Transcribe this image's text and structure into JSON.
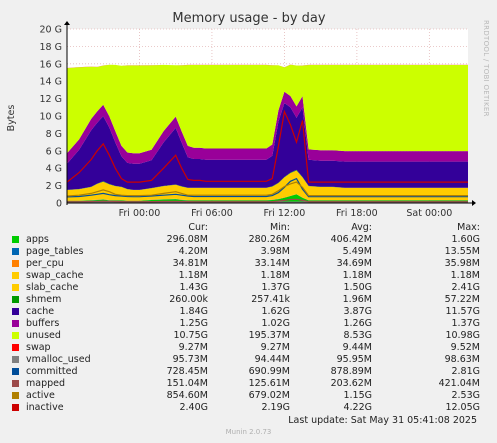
{
  "chart_data": {
    "type": "area",
    "title": "Memory usage - by day",
    "ylabel": "Bytes",
    "side_text": "RRDTOOL / TOBI OETIKER",
    "yticks": [
      "0",
      "2 G",
      "4 G",
      "6 G",
      "8 G",
      "10 G",
      "12 G",
      "14 G",
      "16 G",
      "18 G",
      "20 G"
    ],
    "ylim_gb": [
      0,
      20
    ],
    "xticks": [
      {
        "label": "Fri 00:00",
        "h": 6
      },
      {
        "label": "Fri 06:00",
        "h": 12
      },
      {
        "label": "Fri 12:00",
        "h": 18
      },
      {
        "label": "Fri 18:00",
        "h": 24
      },
      {
        "label": "Sat 00:00",
        "h": 30
      }
    ],
    "xlim_hours": [
      0,
      33.2
    ],
    "grid": true,
    "x_hours": [
      0,
      1,
      2,
      2.5,
      3,
      3.5,
      4,
      4.5,
      5,
      5.5,
      6,
      7,
      8,
      9,
      9.5,
      10,
      10.5,
      11,
      11.5,
      12,
      13,
      14,
      15,
      16,
      16.5,
      17,
      17.5,
      18,
      18.5,
      19,
      19.5,
      20,
      21,
      22,
      23,
      24,
      25,
      26,
      27,
      28,
      29,
      30,
      31,
      32,
      33.2
    ],
    "series": [
      {
        "name": "apps",
        "color": "#00cc00",
        "values": [
          0.25,
          0.25,
          0.3,
          0.35,
          0.4,
          0.3,
          0.3,
          0.3,
          0.25,
          0.25,
          0.25,
          0.35,
          0.4,
          0.45,
          0.35,
          0.3,
          0.3,
          0.3,
          0.3,
          0.3,
          0.3,
          0.3,
          0.3,
          0.3,
          0.3,
          0.35,
          0.45,
          0.6,
          0.8,
          1.0,
          0.6,
          0.3,
          0.3,
          0.3,
          0.3,
          0.3,
          0.3,
          0.3,
          0.3,
          0.3,
          0.3,
          0.3,
          0.3,
          0.3,
          0.3
        ]
      },
      {
        "name": "page_tables",
        "color": "#0066b3",
        "values": [
          0.01,
          0.01,
          0.01,
          0.01,
          0.01,
          0.01,
          0.01,
          0.01,
          0.01,
          0.01,
          0.01,
          0.01,
          0.01,
          0.01,
          0.01,
          0.01,
          0.01,
          0.01,
          0.01,
          0.01,
          0.01,
          0.01,
          0.01,
          0.01,
          0.01,
          0.01,
          0.01,
          0.01,
          0.01,
          0.01,
          0.01,
          0.01,
          0.01,
          0.01,
          0.01,
          0.01,
          0.01,
          0.01,
          0.01,
          0.01,
          0.01,
          0.01,
          0.01,
          0.01,
          0.01
        ]
      },
      {
        "name": "per_cpu",
        "color": "#ff8000",
        "values": [
          0.03,
          0.03,
          0.03,
          0.03,
          0.03,
          0.03,
          0.03,
          0.03,
          0.03,
          0.03,
          0.03,
          0.03,
          0.03,
          0.03,
          0.03,
          0.03,
          0.03,
          0.03,
          0.03,
          0.03,
          0.03,
          0.03,
          0.03,
          0.03,
          0.03,
          0.03,
          0.03,
          0.03,
          0.03,
          0.03,
          0.03,
          0.03,
          0.03,
          0.03,
          0.03,
          0.03,
          0.03,
          0.03,
          0.03,
          0.03,
          0.03,
          0.03,
          0.03,
          0.03,
          0.03
        ]
      },
      {
        "name": "swap_cache",
        "color": "#ffcc00",
        "values": [
          0.0,
          0.0,
          0.0,
          0.0,
          0.0,
          0.0,
          0.0,
          0.0,
          0.0,
          0.0,
          0.0,
          0.0,
          0.0,
          0.0,
          0.0,
          0.0,
          0.0,
          0.0,
          0.0,
          0.0,
          0.0,
          0.0,
          0.0,
          0.0,
          0.0,
          0.0,
          0.0,
          0.0,
          0.0,
          0.0,
          0.0,
          0.0,
          0.0,
          0.0,
          0.0,
          0.0,
          0.0,
          0.0,
          0.0,
          0.0,
          0.0,
          0.0,
          0.0,
          0.0,
          0.0
        ]
      },
      {
        "name": "slab_cache",
        "color": "#ffcc00",
        "values": [
          1.2,
          1.3,
          1.5,
          1.8,
          2.0,
          1.8,
          1.6,
          1.5,
          1.3,
          1.2,
          1.2,
          1.3,
          1.5,
          1.6,
          1.5,
          1.4,
          1.4,
          1.4,
          1.4,
          1.4,
          1.4,
          1.4,
          1.4,
          1.4,
          1.4,
          1.5,
          1.8,
          2.3,
          2.6,
          2.7,
          2.3,
          1.6,
          1.5,
          1.5,
          1.4,
          1.4,
          1.4,
          1.4,
          1.4,
          1.4,
          1.4,
          1.4,
          1.4,
          1.4,
          1.4
        ]
      },
      {
        "name": "shmem",
        "color": "#009900",
        "values": [
          0.02,
          0.02,
          0.03,
          0.04,
          0.05,
          0.04,
          0.03,
          0.03,
          0.02,
          0.02,
          0.02,
          0.03,
          0.03,
          0.04,
          0.03,
          0.02,
          0.02,
          0.02,
          0.02,
          0.02,
          0.02,
          0.02,
          0.02,
          0.02,
          0.02,
          0.03,
          0.04,
          0.05,
          0.06,
          0.06,
          0.05,
          0.02,
          0.02,
          0.02,
          0.02,
          0.02,
          0.02,
          0.02,
          0.02,
          0.02,
          0.02,
          0.02,
          0.02,
          0.02,
          0.02
        ]
      },
      {
        "name": "cache",
        "color": "#330099",
        "values": [
          3.0,
          4.5,
          6.5,
          7.0,
          7.5,
          6.5,
          5.0,
          3.5,
          3.0,
          3.0,
          3.0,
          3.2,
          5.0,
          6.5,
          5.0,
          3.5,
          3.3,
          3.3,
          3.2,
          3.2,
          3.2,
          3.2,
          3.2,
          3.2,
          3.2,
          3.5,
          7.0,
          8.5,
          7.5,
          6.0,
          8.0,
          3.0,
          3.0,
          3.0,
          3.0,
          3.0,
          3.0,
          3.0,
          3.0,
          3.0,
          3.0,
          3.0,
          3.0,
          3.0,
          3.0
        ]
      },
      {
        "name": "buffers",
        "color": "#990099",
        "values": [
          1.2,
          1.2,
          1.3,
          1.3,
          1.3,
          1.3,
          1.3,
          1.2,
          1.2,
          1.2,
          1.2,
          1.2,
          1.3,
          1.3,
          1.3,
          1.3,
          1.3,
          1.3,
          1.3,
          1.3,
          1.3,
          1.3,
          1.3,
          1.3,
          1.3,
          1.3,
          1.3,
          1.3,
          1.3,
          1.3,
          1.3,
          1.2,
          1.2,
          1.2,
          1.2,
          1.2,
          1.2,
          1.2,
          1.2,
          1.2,
          1.2,
          1.2,
          1.2,
          1.2,
          1.2
        ]
      },
      {
        "name": "unused",
        "color": "#ccff00",
        "values": [
          9.8,
          8.3,
          6.0,
          5.1,
          4.5,
          5.9,
          7.6,
          9.2,
          10.0,
          10.1,
          10.1,
          9.7,
          7.6,
          5.9,
          7.6,
          9.3,
          9.5,
          9.5,
          9.6,
          9.6,
          9.6,
          9.6,
          9.6,
          9.6,
          9.6,
          9.1,
          5.2,
          2.8,
          3.6,
          4.7,
          3.5,
          9.7,
          9.8,
          9.8,
          9.9,
          9.9,
          9.9,
          9.9,
          9.9,
          9.9,
          9.9,
          9.9,
          9.9,
          9.9,
          9.9
        ]
      },
      {
        "name": "swap",
        "color": "#ff0000",
        "values": [
          0.009,
          0.009,
          0.009,
          0.009,
          0.009,
          0.009,
          0.009,
          0.009,
          0.009,
          0.009,
          0.009,
          0.009,
          0.009,
          0.009,
          0.009,
          0.009,
          0.009,
          0.009,
          0.009,
          0.009,
          0.009,
          0.009,
          0.009,
          0.009,
          0.009,
          0.009,
          0.009,
          0.009,
          0.009,
          0.009,
          0.009,
          0.009,
          0.009,
          0.009,
          0.009,
          0.009,
          0.009,
          0.009,
          0.009,
          0.009,
          0.009,
          0.009,
          0.009,
          0.009,
          0.009
        ]
      }
    ],
    "lines": [
      {
        "name": "vmalloc_used",
        "color": "#808080",
        "values": [
          0.1,
          0.1,
          0.1,
          0.1,
          0.1,
          0.1,
          0.1,
          0.1,
          0.1,
          0.1,
          0.1,
          0.1,
          0.1,
          0.1,
          0.1,
          0.1,
          0.1,
          0.1,
          0.1,
          0.1,
          0.1,
          0.1,
          0.1,
          0.1,
          0.1,
          0.1,
          0.1,
          0.1,
          0.1,
          0.1,
          0.1,
          0.1,
          0.1,
          0.1,
          0.1,
          0.1,
          0.1,
          0.1,
          0.1,
          0.1,
          0.1,
          0.1,
          0.1,
          0.1,
          0.1
        ]
      },
      {
        "name": "committed",
        "color": "#004d99",
        "values": [
          0.7,
          0.75,
          0.9,
          1.0,
          1.1,
          0.95,
          0.85,
          0.8,
          0.75,
          0.72,
          0.72,
          0.8,
          0.9,
          1.0,
          0.9,
          0.8,
          0.75,
          0.75,
          0.75,
          0.75,
          0.75,
          0.75,
          0.75,
          0.75,
          0.75,
          0.85,
          1.2,
          1.8,
          2.5,
          2.8,
          1.6,
          0.72,
          0.72,
          0.72,
          0.72,
          0.72,
          0.72,
          0.72,
          0.72,
          0.72,
          0.72,
          0.72,
          0.72,
          0.72,
          0.72
        ]
      },
      {
        "name": "mapped",
        "color": "#9c4a4a",
        "values": [
          0.15,
          0.15,
          0.17,
          0.2,
          0.22,
          0.2,
          0.17,
          0.16,
          0.15,
          0.15,
          0.15,
          0.16,
          0.18,
          0.2,
          0.18,
          0.16,
          0.15,
          0.15,
          0.15,
          0.15,
          0.15,
          0.15,
          0.15,
          0.15,
          0.15,
          0.16,
          0.22,
          0.3,
          0.4,
          0.42,
          0.3,
          0.15,
          0.15,
          0.15,
          0.15,
          0.15,
          0.15,
          0.15,
          0.15,
          0.15,
          0.15,
          0.15,
          0.15,
          0.15,
          0.15
        ]
      },
      {
        "name": "active",
        "color": "#b08000",
        "values": [
          0.8,
          0.9,
          1.1,
          1.3,
          1.5,
          1.3,
          1.0,
          0.9,
          0.85,
          0.85,
          0.85,
          0.9,
          1.1,
          1.3,
          1.1,
          0.9,
          0.9,
          0.9,
          0.9,
          0.9,
          0.9,
          0.9,
          0.9,
          0.9,
          0.9,
          1.0,
          1.4,
          1.9,
          2.2,
          2.4,
          1.8,
          0.85,
          0.85,
          0.85,
          0.85,
          0.85,
          0.85,
          0.85,
          0.85,
          0.85,
          0.85,
          0.85,
          0.85,
          0.85,
          0.85
        ]
      },
      {
        "name": "inactive",
        "color": "#cc0000",
        "values": [
          2.4,
          3.5,
          5.0,
          6.0,
          6.8,
          5.5,
          4.0,
          2.8,
          2.4,
          2.4,
          2.4,
          2.6,
          4.0,
          5.5,
          4.0,
          2.7,
          2.6,
          2.6,
          2.5,
          2.5,
          2.5,
          2.5,
          2.5,
          2.5,
          2.5,
          2.8,
          6.5,
          10.5,
          9.0,
          7.0,
          9.5,
          2.4,
          2.4,
          2.4,
          2.4,
          2.4,
          2.4,
          2.4,
          2.4,
          2.4,
          2.4,
          2.4,
          2.4,
          2.4,
          2.4
        ]
      }
    ]
  },
  "legend": {
    "headers": [
      "Cur:",
      "Min:",
      "Avg:",
      "Max:"
    ],
    "rows": [
      {
        "name": "apps",
        "color": "#00cc00",
        "cur": "296.08M",
        "min": "280.26M",
        "avg": "406.42M",
        "max": "1.60G"
      },
      {
        "name": "page_tables",
        "color": "#0066b3",
        "cur": "4.20M",
        "min": "3.98M",
        "avg": "5.49M",
        "max": "13.55M"
      },
      {
        "name": "per_cpu",
        "color": "#ff8000",
        "cur": "34.81M",
        "min": "33.14M",
        "avg": "34.69M",
        "max": "35.98M"
      },
      {
        "name": "swap_cache",
        "color": "#ffcc00",
        "cur": "1.18M",
        "min": "1.18M",
        "avg": "1.18M",
        "max": "1.18M"
      },
      {
        "name": "slab_cache",
        "color": "#ffcc00",
        "cur": "1.43G",
        "min": "1.37G",
        "avg": "1.50G",
        "max": "2.41G"
      },
      {
        "name": "shmem",
        "color": "#009900",
        "cur": "260.00k",
        "min": "257.41k",
        "avg": "1.96M",
        "max": "57.22M"
      },
      {
        "name": "cache",
        "color": "#330099",
        "cur": "1.84G",
        "min": "1.62G",
        "avg": "3.87G",
        "max": "11.57G"
      },
      {
        "name": "buffers",
        "color": "#990099",
        "cur": "1.25G",
        "min": "1.02G",
        "avg": "1.26G",
        "max": "1.37G"
      },
      {
        "name": "unused",
        "color": "#ccff00",
        "cur": "10.75G",
        "min": "195.37M",
        "avg": "8.53G",
        "max": "10.98G"
      },
      {
        "name": "swap",
        "color": "#ff0000",
        "cur": "9.27M",
        "min": "9.27M",
        "avg": "9.44M",
        "max": "9.52M"
      },
      {
        "name": "vmalloc_used",
        "color": "#808080",
        "cur": "95.73M",
        "min": "94.44M",
        "avg": "95.95M",
        "max": "98.63M"
      },
      {
        "name": "committed",
        "color": "#004d99",
        "cur": "728.45M",
        "min": "690.99M",
        "avg": "878.89M",
        "max": "2.81G"
      },
      {
        "name": "mapped",
        "color": "#9c4a4a",
        "cur": "151.04M",
        "min": "125.61M",
        "avg": "203.62M",
        "max": "421.04M"
      },
      {
        "name": "active",
        "color": "#b08000",
        "cur": "854.60M",
        "min": "679.02M",
        "avg": "1.15G",
        "max": "2.53G"
      },
      {
        "name": "inactive",
        "color": "#cc0000",
        "cur": "2.40G",
        "min": "2.19G",
        "avg": "4.22G",
        "max": "12.05G"
      }
    ]
  },
  "last_update": "Last update: Sat May 31 05:41:08 2025",
  "footer": "Munin 2.0.73"
}
